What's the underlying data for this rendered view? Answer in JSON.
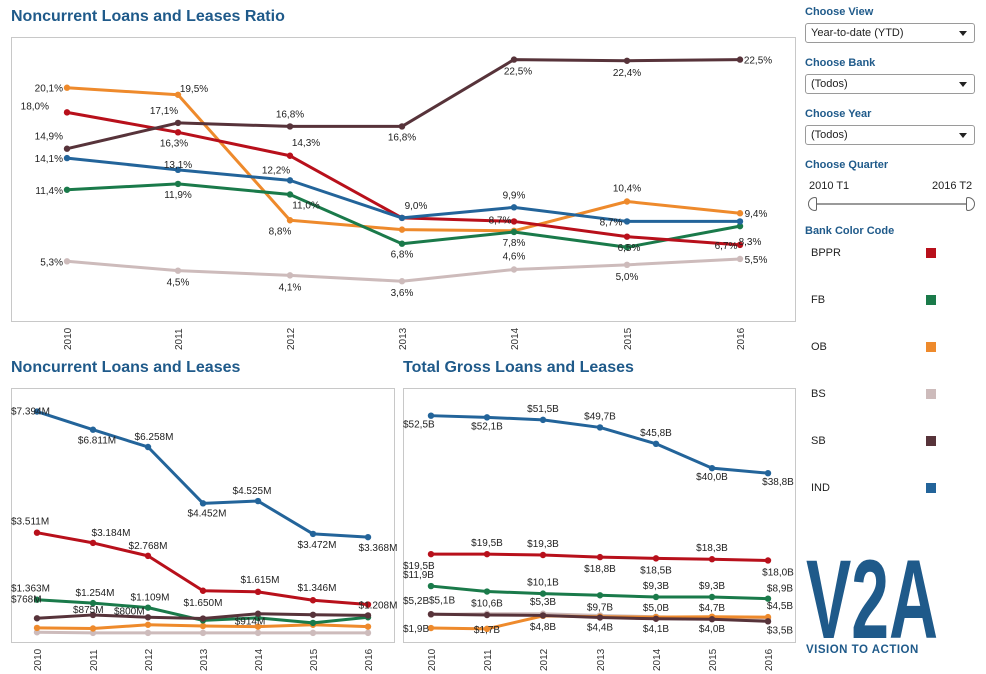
{
  "charts": {
    "ratio": {
      "title": "Noncurrent Loans and Leases Ratio",
      "chart_data": {
        "type": "line",
        "categories": [
          "2010",
          "2011",
          "2012",
          "2013",
          "2014",
          "2015",
          "2016"
        ],
        "ylim": [
          2,
          24
        ],
        "series": [
          {
            "name": "BPPR",
            "values": [
              18.0,
              16.3,
              14.3,
              9.0,
              8.7,
              7.4,
              6.7
            ],
            "labels": [
              "18,0%",
              "16,3%",
              "14,3%",
              "",
              "8,7%",
              "",
              "6,7%"
            ]
          },
          {
            "name": "FB",
            "values": [
              11.4,
              11.9,
              11.0,
              6.8,
              7.8,
              6.5,
              8.3
            ],
            "labels": [
              "11,4%",
              "11,9%",
              "11,0%",
              "6,8%",
              "7,8%",
              "6,5%",
              "8,3%"
            ]
          },
          {
            "name": "OB",
            "values": [
              20.1,
              19.5,
              8.8,
              8.0,
              7.9,
              10.4,
              9.4
            ],
            "labels": [
              "20,1%",
              "19,5%",
              "8,8%",
              "",
              "",
              "10,4%",
              "9,4%"
            ]
          },
          {
            "name": "BS",
            "values": [
              5.3,
              4.5,
              4.1,
              3.6,
              4.6,
              5.0,
              5.5
            ],
            "labels": [
              "5,3%",
              "4,5%",
              "4,1%",
              "3,6%",
              "4,6%",
              "5,0%",
              "5,5%"
            ]
          },
          {
            "name": "SB",
            "values": [
              14.9,
              17.1,
              16.8,
              16.8,
              22.5,
              22.4,
              22.5
            ],
            "labels": [
              "14,9%",
              "17,1%",
              "16,8%",
              "16,8%",
              "22,5%",
              "22,4%",
              "22,5%"
            ]
          },
          {
            "name": "IND",
            "values": [
              14.1,
              13.1,
              12.2,
              9.0,
              9.9,
              8.7,
              8.7
            ],
            "labels": [
              "14,1%",
              "13,1%",
              "12,2%",
              "9,0%",
              "9,9%",
              "8,7%",
              ""
            ]
          }
        ]
      }
    },
    "noncurrent": {
      "title": "Noncurrent Loans and Leases",
      "chart_data": {
        "type": "line",
        "categories": [
          "2010",
          "2011",
          "2012",
          "2013",
          "2014",
          "2015",
          "2016"
        ],
        "ylim": [
          200,
          7700
        ],
        "series": [
          {
            "name": "BPPR",
            "values": [
              3511,
              3184,
              2768,
              1650,
              1615,
              1346,
              1208
            ],
            "labels": [
              "$3.511M",
              "$3.184M",
              "$2.768M",
              "$1.650M",
              "$1.615M",
              "$1.346M",
              "$1.208M"
            ]
          },
          {
            "name": "FB",
            "values": [
              1363,
              1254,
              1109,
              700,
              780,
              620,
              800
            ],
            "labels": [
              "$1.363M",
              "$1.254M",
              "$1.109M",
              "",
              "",
              "",
              ""
            ]
          },
          {
            "name": "OB",
            "values": [
              460,
              440,
              560,
              520,
              500,
              560,
              500
            ],
            "labels": [
              "",
              "",
              "",
              "",
              "",
              "",
              ""
            ]
          },
          {
            "name": "BS",
            "values": [
              320,
              300,
              300,
              300,
              300,
              300,
              300
            ],
            "labels": [
              "",
              "",
              "",
              "",
              "",
              "",
              ""
            ]
          },
          {
            "name": "SB",
            "values": [
              768,
              875,
              800,
              760,
              914,
              880,
              860
            ],
            "labels": [
              "$768M",
              "$875M",
              "$800M",
              "",
              "$914M",
              "",
              ""
            ]
          },
          {
            "name": "IND",
            "values": [
              7394,
              6811,
              6258,
              4452,
              4525,
              3472,
              3368
            ],
            "labels": [
              "$7.394M",
              "$6.811M",
              "$6.258M",
              "$4.452M",
              "$4.525M",
              "$3.472M",
              "$3.368M"
            ]
          }
        ]
      }
    },
    "gross": {
      "title": "Total Gross Loans and Leases",
      "chart_data": {
        "type": "line",
        "categories": [
          "2010",
          "2011",
          "2012",
          "2013",
          "2014",
          "2015",
          "2016"
        ],
        "ylim": [
          0,
          56
        ],
        "series": [
          {
            "name": "BPPR",
            "values": [
              19.5,
              19.5,
              19.3,
              18.8,
              18.5,
              18.3,
              18.0
            ],
            "labels": [
              "$19,5B",
              "$19,5B",
              "$19,3B",
              "$18,8B",
              "$18,5B",
              "$18,3B",
              "$18,0B"
            ]
          },
          {
            "name": "FB",
            "values": [
              11.9,
              10.6,
              10.1,
              9.7,
              9.3,
              9.3,
              8.9
            ],
            "labels": [
              "$11,9B",
              "$10,6B",
              "$10,1B",
              "$9,7B",
              "$9,3B",
              "$9,3B",
              "$8,9B"
            ]
          },
          {
            "name": "OB",
            "values": [
              1.9,
              1.7,
              4.8,
              4.6,
              4.5,
              4.6,
              4.5
            ],
            "labels": [
              "$1,9B",
              "$1,7B",
              "$4,8B",
              "",
              "",
              "",
              "$4,5B"
            ]
          },
          {
            "name": "BS",
            "values": [
              5.1,
              5.3,
              5.3,
              4.9,
              4.6,
              4.3,
              4.2
            ],
            "labels": [
              "$5,1B",
              "",
              "$5,3B",
              "",
              "",
              "",
              ""
            ]
          },
          {
            "name": "SB",
            "values": [
              5.2,
              5.0,
              4.9,
              4.4,
              4.1,
              4.0,
              3.5
            ],
            "labels": [
              "$5,2B",
              "",
              "",
              "$4,4B",
              "$4,1B",
              "$4,0B",
              "$3,5B"
            ]
          },
          {
            "name": "IND",
            "values": [
              52.5,
              52.1,
              51.5,
              49.7,
              45.8,
              40.0,
              38.8
            ],
            "labels": [
              "$52,5B",
              "$52,1B",
              "$51,5B",
              "$49,7B",
              "$45,8B",
              "$40,0B",
              "$38,8B"
            ]
          }
        ],
        "extra_labels": [
          "$5,0B",
          "$4,7B"
        ]
      }
    }
  },
  "colors": {
    "BPPR": "#b8101b",
    "FB": "#1a7a4a",
    "OB": "#ee8a2c",
    "BS": "#cdbbbb",
    "SB": "#57333a",
    "IND": "#23649a"
  },
  "panel": {
    "view_label": "Choose View",
    "view_value": "Year-to-date (YTD)",
    "bank_label": "Choose Bank",
    "bank_value": "(Todos)",
    "year_label": "Choose Year",
    "year_value": "(Todos)",
    "quarter_label": "Choose Quarter",
    "quarter_min": "2010 T1",
    "quarter_max": "2016 T2",
    "legend_title": "Bank Color Code",
    "legend": [
      "BPPR",
      "FB",
      "OB",
      "BS",
      "SB",
      "IND"
    ]
  },
  "logo": {
    "text": "V2A",
    "tagline": "VISION TO ACTION"
  }
}
